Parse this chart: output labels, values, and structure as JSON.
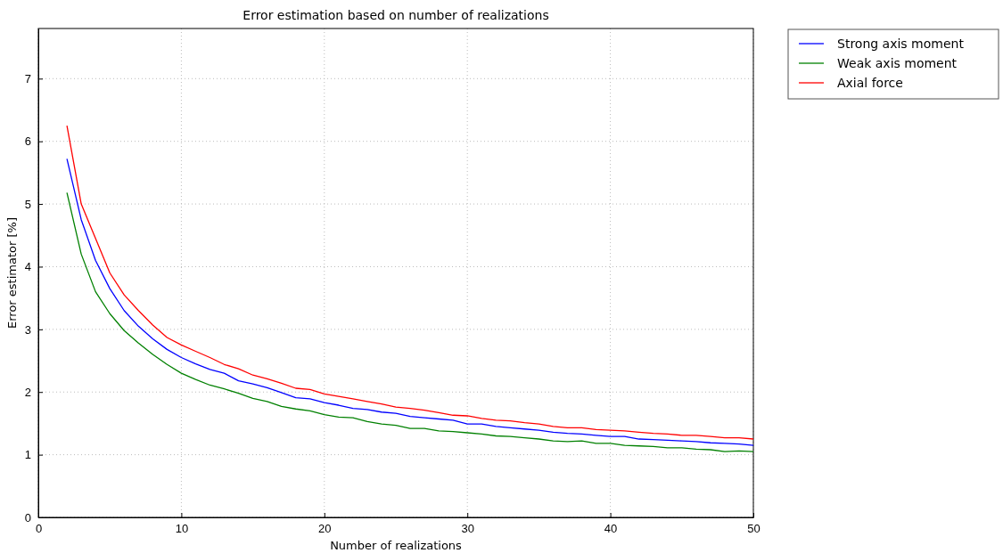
{
  "chart_data": {
    "type": "line",
    "title": "Error estimation based on number of realizations",
    "xlabel": "Number of realizations",
    "ylabel": "Error estimator [%]",
    "x": [
      2,
      3,
      4,
      5,
      6,
      7,
      8,
      9,
      10,
      11,
      12,
      13,
      14,
      15,
      16,
      17,
      18,
      19,
      20,
      21,
      22,
      23,
      24,
      25,
      26,
      27,
      28,
      29,
      30,
      31,
      32,
      33,
      34,
      35,
      36,
      37,
      38,
      39,
      40,
      41,
      42,
      43,
      44,
      45,
      46,
      47,
      48,
      49,
      50
    ],
    "series": [
      {
        "name": "Strong axis moment",
        "color": "#0000ff",
        "values": [
          5.72,
          4.75,
          4.1,
          3.65,
          3.3,
          3.05,
          2.85,
          2.68,
          2.55,
          2.45,
          2.36,
          2.3,
          2.18,
          2.13,
          2.07,
          1.99,
          1.91,
          1.89,
          1.83,
          1.79,
          1.74,
          1.72,
          1.68,
          1.66,
          1.61,
          1.59,
          1.57,
          1.55,
          1.49,
          1.49,
          1.45,
          1.43,
          1.41,
          1.39,
          1.36,
          1.34,
          1.33,
          1.31,
          1.29,
          1.29,
          1.25,
          1.24,
          1.23,
          1.22,
          1.21,
          1.19,
          1.18,
          1.17,
          1.15
        ]
      },
      {
        "name": "Weak axis moment",
        "color": "#008000",
        "values": [
          5.18,
          4.2,
          3.6,
          3.25,
          2.98,
          2.78,
          2.6,
          2.44,
          2.3,
          2.2,
          2.11,
          2.05,
          1.98,
          1.9,
          1.85,
          1.77,
          1.73,
          1.7,
          1.64,
          1.6,
          1.59,
          1.53,
          1.49,
          1.47,
          1.42,
          1.42,
          1.38,
          1.37,
          1.35,
          1.33,
          1.3,
          1.29,
          1.27,
          1.25,
          1.22,
          1.21,
          1.22,
          1.18,
          1.18,
          1.15,
          1.14,
          1.13,
          1.11,
          1.11,
          1.09,
          1.08,
          1.05,
          1.06,
          1.05
        ]
      },
      {
        "name": "Axial force",
        "color": "#ff0000",
        "values": [
          6.25,
          5.0,
          4.45,
          3.9,
          3.55,
          3.3,
          3.07,
          2.87,
          2.75,
          2.65,
          2.55,
          2.44,
          2.37,
          2.27,
          2.21,
          2.14,
          2.06,
          2.04,
          1.97,
          1.93,
          1.89,
          1.85,
          1.81,
          1.76,
          1.74,
          1.71,
          1.67,
          1.63,
          1.62,
          1.58,
          1.55,
          1.54,
          1.51,
          1.49,
          1.45,
          1.43,
          1.43,
          1.4,
          1.39,
          1.38,
          1.36,
          1.34,
          1.33,
          1.31,
          1.31,
          1.29,
          1.27,
          1.27,
          1.25
        ]
      }
    ],
    "xlim": [
      0,
      50
    ],
    "xticks": [
      0,
      10,
      20,
      30,
      40,
      50
    ],
    "ylim": [
      0,
      7.8
    ],
    "yticks": [
      0,
      1,
      2,
      3,
      4,
      5,
      6,
      7
    ],
    "grid": true,
    "legend": "top right",
    "line_style": "solid",
    "marker": "none"
  }
}
